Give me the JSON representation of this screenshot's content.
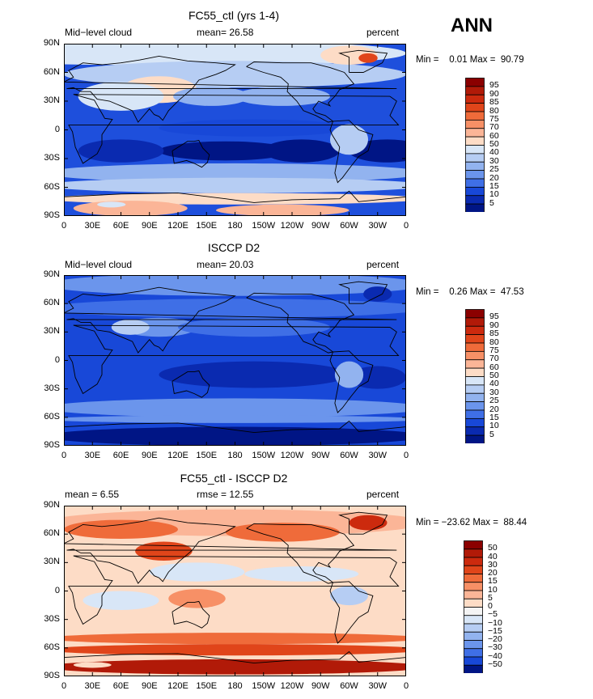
{
  "season_label": "ANN",
  "xticks": [
    "0",
    "30E",
    "60E",
    "90E",
    "120E",
    "150E",
    "180",
    "150W",
    "120W",
    "90W",
    "60W",
    "30W",
    "0"
  ],
  "yticks": [
    "90N",
    "60N",
    "30N",
    "0",
    "30S",
    "60S",
    "90S"
  ],
  "panels": [
    {
      "title": "FC55_ctl (yrs 1-4)",
      "left_label": "Mid−level cloud",
      "center_label": "mean=  26.58",
      "right_label": "percent",
      "stats": "Min =    0.01 Max =  90.79",
      "colorbar": {
        "labels": [
          "95",
          "90",
          "85",
          "80",
          "75",
          "70",
          "60",
          "50",
          "40",
          "30",
          "25",
          "20",
          "15",
          "10",
          "5"
        ],
        "colors": [
          "#8b0000",
          "#b11a08",
          "#cc2a0e",
          "#e0451a",
          "#ef6b3a",
          "#f79066",
          "#fbb597",
          "#fddcc6",
          "#d8e6f7",
          "#b6cdf3",
          "#92b3ef",
          "#6b95ec",
          "#3f6fe6",
          "#1848d8",
          "#0a2ab0",
          "#001585"
        ]
      },
      "field": {
        "background": "#1e4fdc",
        "blobs": [
          {
            "color": "#d8e6f7",
            "lon": 40,
            "lat": 80,
            "rx": 140,
            "ry": 12
          },
          {
            "color": "#d8e6f7",
            "lon": 200,
            "lat": 80,
            "rx": 160,
            "ry": 12
          },
          {
            "color": "#b6cdf3",
            "lon": 180,
            "lat": 58,
            "rx": 180,
            "ry": 14
          },
          {
            "color": "#fddcc6",
            "lon": 300,
            "lat": 78,
            "rx": 30,
            "ry": 10
          },
          {
            "color": "#e0451a",
            "lon": 320,
            "lat": 75,
            "rx": 10,
            "ry": 5
          },
          {
            "color": "#fddcc6",
            "lon": 100,
            "lat": 42,
            "rx": 40,
            "ry": 14
          },
          {
            "color": "#d8e6f7",
            "lon": 60,
            "lat": 35,
            "rx": 45,
            "ry": 15
          },
          {
            "color": "#92b3ef",
            "lon": 155,
            "lat": 35,
            "rx": 40,
            "ry": 10
          },
          {
            "color": "#92b3ef",
            "lon": 230,
            "lat": 35,
            "rx": 50,
            "ry": 10
          },
          {
            "color": "#1848d8",
            "lon": 200,
            "lat": 2,
            "rx": 100,
            "ry": 9
          },
          {
            "color": "#001585",
            "lon": 170,
            "lat": -22,
            "rx": 70,
            "ry": 10
          },
          {
            "color": "#001585",
            "lon": 250,
            "lat": -22,
            "rx": 40,
            "ry": 12
          },
          {
            "color": "#001585",
            "lon": 340,
            "lat": -22,
            "rx": 40,
            "ry": 12
          },
          {
            "color": "#0a2ab0",
            "lon": 60,
            "lat": -22,
            "rx": 45,
            "ry": 12
          },
          {
            "color": "#b6cdf3",
            "lon": 300,
            "lat": -10,
            "rx": 20,
            "ry": 16
          },
          {
            "color": "#92b3ef",
            "lon": 180,
            "lat": -45,
            "rx": 200,
            "ry": 10
          },
          {
            "color": "#b6cdf3",
            "lon": 180,
            "lat": -58,
            "rx": 200,
            "ry": 8
          },
          {
            "color": "#fddcc6",
            "lon": 180,
            "lat": -72,
            "rx": 200,
            "ry": 6
          },
          {
            "color": "#fbb597",
            "lon": 70,
            "lat": -82,
            "rx": 60,
            "ry": 8
          },
          {
            "color": "#fbb597",
            "lon": 230,
            "lat": -84,
            "rx": 70,
            "ry": 6
          },
          {
            "color": "#d8e6f7",
            "lon": 50,
            "lat": -78,
            "rx": 15,
            "ry": 3
          }
        ]
      }
    },
    {
      "title": "ISCCP D2",
      "left_label": "Mid−level cloud",
      "center_label": "mean=  20.03",
      "right_label": "percent",
      "stats": "Min =    0.26 Max =  47.53",
      "colorbar": {
        "labels": [
          "95",
          "90",
          "85",
          "80",
          "75",
          "70",
          "60",
          "50",
          "40",
          "30",
          "25",
          "20",
          "15",
          "10",
          "5"
        ],
        "colors": [
          "#8b0000",
          "#b11a08",
          "#cc2a0e",
          "#e0451a",
          "#ef6b3a",
          "#f79066",
          "#fbb597",
          "#fddcc6",
          "#d8e6f7",
          "#b6cdf3",
          "#92b3ef",
          "#6b95ec",
          "#3f6fe6",
          "#1848d8",
          "#0a2ab0",
          "#001585"
        ]
      },
      "field": {
        "background": "#1848d8",
        "blobs": [
          {
            "color": "#6b95ec",
            "lon": 180,
            "lat": 80,
            "rx": 200,
            "ry": 12
          },
          {
            "color": "#3f6fe6",
            "lon": 180,
            "lat": 55,
            "rx": 200,
            "ry": 10
          },
          {
            "color": "#6b95ec",
            "lon": 100,
            "lat": 35,
            "rx": 40,
            "ry": 10
          },
          {
            "color": "#b6cdf3",
            "lon": 70,
            "lat": 35,
            "rx": 20,
            "ry": 8
          },
          {
            "color": "#3f6fe6",
            "lon": 200,
            "lat": 35,
            "rx": 80,
            "ry": 10
          },
          {
            "color": "#0a2ab0",
            "lon": 200,
            "lat": -15,
            "rx": 100,
            "ry": 14
          },
          {
            "color": "#0a2ab0",
            "lon": 330,
            "lat": -18,
            "rx": 30,
            "ry": 12
          },
          {
            "color": "#92b3ef",
            "lon": 300,
            "lat": -15,
            "rx": 15,
            "ry": 14
          },
          {
            "color": "#6b95ec",
            "lon": 180,
            "lat": -50,
            "rx": 200,
            "ry": 10
          },
          {
            "color": "#6b95ec",
            "lon": 180,
            "lat": -62,
            "rx": 200,
            "ry": 4
          },
          {
            "color": "#001585",
            "lon": 180,
            "lat": -80,
            "rx": 200,
            "ry": 10
          },
          {
            "color": "#0a2ab0",
            "lon": 330,
            "lat": 70,
            "rx": 15,
            "ry": 8
          }
        ]
      }
    },
    {
      "title": "FC55_ctl - ISCCP D2",
      "left_label": "mean =    6.55",
      "center_label": "rmse =   12.55",
      "right_label": "percent",
      "stats": "Min = −23.62 Max =  88.44",
      "colorbar": {
        "labels": [
          "50",
          "40",
          "30",
          "20",
          "15",
          "10",
          "5",
          "0",
          "−5",
          "−10",
          "−15",
          "−20",
          "−30",
          "−40",
          "−50"
        ],
        "colors": [
          "#8b0000",
          "#b11a08",
          "#cc2a0e",
          "#e0451a",
          "#ef6b3a",
          "#f79066",
          "#fbb597",
          "#fddcc6",
          "#f4f4f4",
          "#d8e6f7",
          "#b6cdf3",
          "#92b3ef",
          "#6b95ec",
          "#3f6fe6",
          "#1848d8",
          "#001585"
        ]
      },
      "field": {
        "background": "#fddcc6",
        "blobs": [
          {
            "color": "#fbb597",
            "lon": 180,
            "lat": 72,
            "rx": 200,
            "ry": 14
          },
          {
            "color": "#ef6b3a",
            "lon": 60,
            "lat": 65,
            "rx": 60,
            "ry": 10
          },
          {
            "color": "#ef6b3a",
            "lon": 230,
            "lat": 62,
            "rx": 60,
            "ry": 10
          },
          {
            "color": "#cc2a0e",
            "lon": 320,
            "lat": 72,
            "rx": 20,
            "ry": 8
          },
          {
            "color": "#e0451a",
            "lon": 105,
            "lat": 42,
            "rx": 30,
            "ry": 10
          },
          {
            "color": "#d8e6f7",
            "lon": 140,
            "lat": 20,
            "rx": 50,
            "ry": 10
          },
          {
            "color": "#d8e6f7",
            "lon": 250,
            "lat": 18,
            "rx": 60,
            "ry": 8
          },
          {
            "color": "#b6cdf3",
            "lon": 300,
            "lat": -5,
            "rx": 20,
            "ry": 10
          },
          {
            "color": "#d8e6f7",
            "lon": 60,
            "lat": -10,
            "rx": 40,
            "ry": 10
          },
          {
            "color": "#f79066",
            "lon": 140,
            "lat": -8,
            "rx": 30,
            "ry": 10
          },
          {
            "color": "#ef6b3a",
            "lon": 180,
            "lat": -50,
            "rx": 200,
            "ry": 6
          },
          {
            "color": "#e0451a",
            "lon": 180,
            "lat": -62,
            "rx": 200,
            "ry": 6
          },
          {
            "color": "#b11a08",
            "lon": 180,
            "lat": -80,
            "rx": 200,
            "ry": 8
          },
          {
            "color": "#fddcc6",
            "lon": 30,
            "lat": -78,
            "rx": 20,
            "ry": 3
          }
        ]
      }
    }
  ]
}
